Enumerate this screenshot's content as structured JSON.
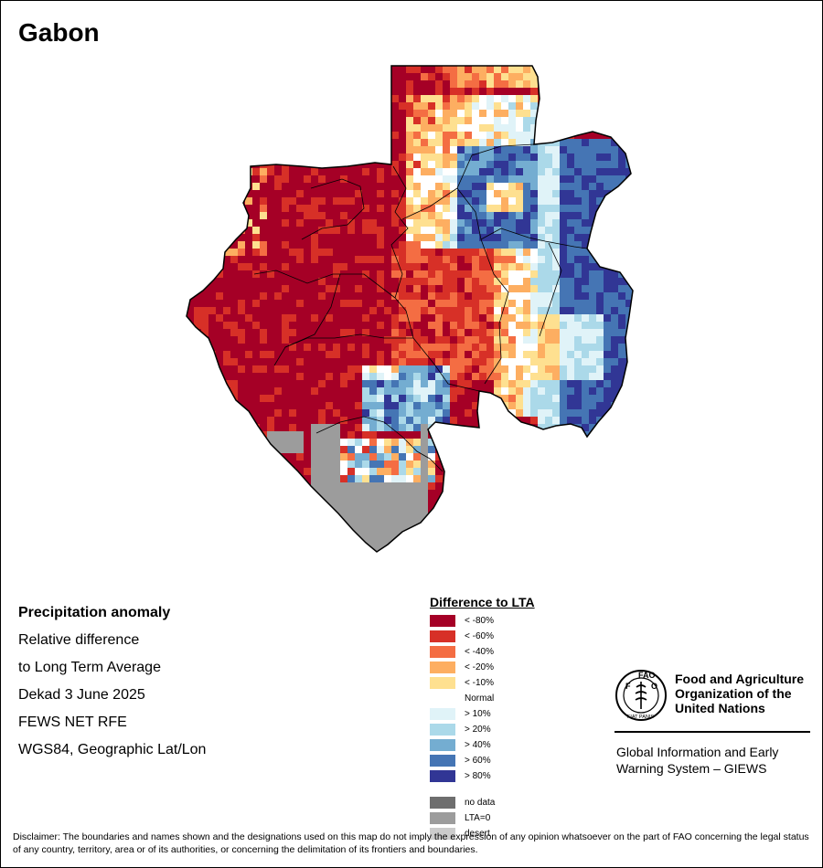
{
  "map_title": "Gabon",
  "info": {
    "line1": "Precipitation anomaly",
    "line2": "Relative difference",
    "line3": "to Long Term Average",
    "line4": "Dekad 3 June 2025",
    "line5": "FEWS NET RFE",
    "line6": "WGS84, Geographic Lat/Lon"
  },
  "legend": {
    "title": "Difference to LTA",
    "classes": [
      {
        "label": "< -80%",
        "color": "#a50026"
      },
      {
        "label": "< -60%",
        "color": "#d73027"
      },
      {
        "label": "< -40%",
        "color": "#f46d43"
      },
      {
        "label": "< -20%",
        "color": "#fdae61"
      },
      {
        "label": "< -10%",
        "color": "#fee090"
      },
      {
        "label": "Normal",
        "color": "#ffffff"
      },
      {
        "label": "> 10%",
        "color": "#e0f3f8"
      },
      {
        "label": "> 20%",
        "color": "#abd9e9"
      },
      {
        "label": "> 40%",
        "color": "#74add1"
      },
      {
        "label": "> 60%",
        "color": "#4575b4"
      },
      {
        "label": "> 80%",
        "color": "#313695"
      }
    ],
    "extra": [
      {
        "label": "no data",
        "color": "#6e6e6e"
      },
      {
        "label": "LTA=0",
        "color": "#9c9c9c"
      },
      {
        "label": "desert",
        "color": "#cccccc"
      }
    ]
  },
  "fao": {
    "logo_text": "FAO",
    "logo_motto": "FIAT PANIS",
    "name_line1": "Food and Agriculture",
    "name_line2": "Organization of the",
    "name_line3": "United Nations",
    "giews_line1": "Global Information and Early",
    "giews_line2": "Warning System – GIEWS"
  },
  "disclaimer": "Disclaimer: The boundaries and names shown and the designations used on this map do not imply the expression of any opinion whatsoever on the part of FAO concerning the legal status of any country, territory, area or of its authorities, or concerning the delimitation of its frontiers and boundaries."
}
